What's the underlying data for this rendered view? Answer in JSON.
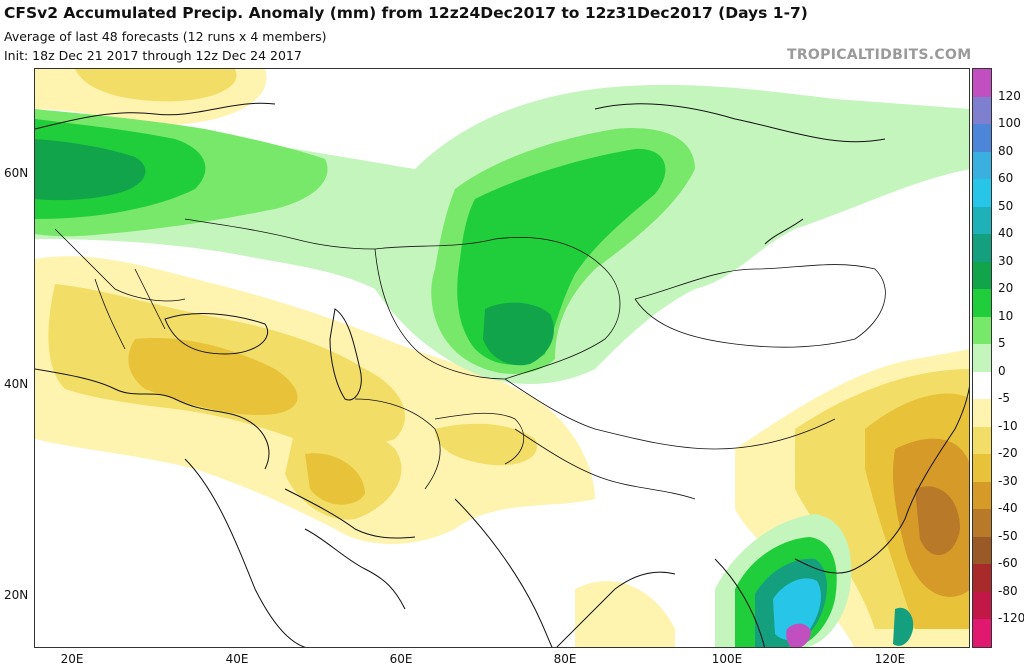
{
  "header": {
    "title": "CFSv2 Accumulated Precip. Anomaly (mm) from 12z24Dec2017 to 12z31Dec2017 (Days 1-7)",
    "subtitle": "Average of last 48 forecasts (12 runs x 4 members)",
    "init": "Init: 18z Dec 21 2017 through 12z Dec 24 2017",
    "brand": "TROPICALTIDBITS.COM"
  },
  "axes": {
    "lat_labels": [
      "60N",
      "40N",
      "20N"
    ],
    "lon_labels": [
      "20E",
      "40E",
      "60E",
      "80E",
      "100E",
      "120E"
    ]
  },
  "colorbar": {
    "labels": [
      "120",
      "100",
      "80",
      "60",
      "50",
      "40",
      "30",
      "20",
      "10",
      "5",
      "0",
      "-5",
      "-10",
      "-20",
      "-30",
      "-40",
      "-50",
      "-60",
      "-80",
      "-120"
    ],
    "colors": [
      "#c24fc0",
      "#7f7fd0",
      "#4d86d8",
      "#3ab0e0",
      "#27c6e8",
      "#1fb1b8",
      "#14a07e",
      "#12a44a",
      "#1fce3a",
      "#78e86a",
      "#c4f5bc",
      "#ffffff",
      "#fff3b0",
      "#f2dd66",
      "#e8c33a",
      "#d69a28",
      "#b87a28",
      "#9a5a28",
      "#a82a2a",
      "#c21848",
      "#e01870"
    ]
  },
  "map": {
    "colors": {
      "light_green": "#c4f5bc",
      "mid_green": "#78e86a",
      "green": "#1fce3a",
      "dark_green": "#12a44a",
      "teal": "#14a07e",
      "cyan": "#27c6e8",
      "light_blue": "#3ab0e0",
      "lavender": "#c24fc0",
      "pale_yellow": "#fff3b0",
      "yellow": "#f2dd66",
      "gold": "#e8c33a",
      "orange_brown": "#d69a28",
      "brown": "#b87a28"
    }
  }
}
